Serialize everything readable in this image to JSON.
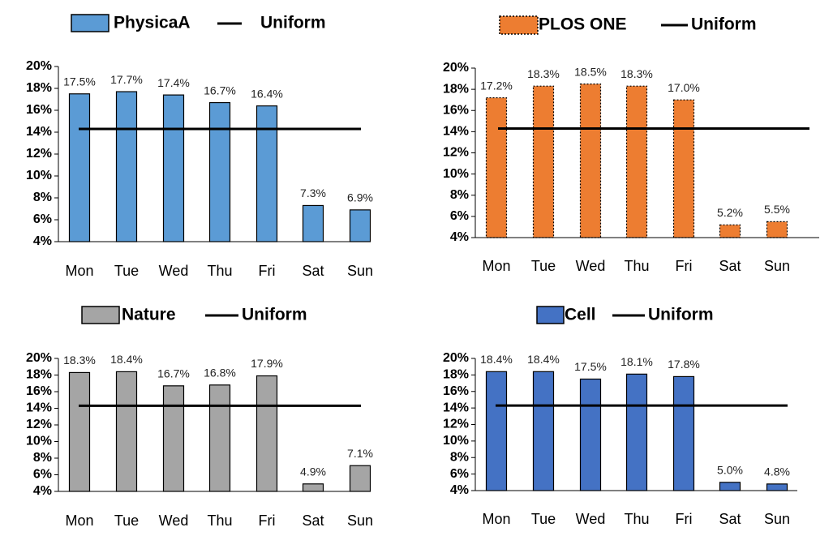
{
  "chart_data": [
    {
      "type": "bar",
      "title": "",
      "categories": [
        "Mon",
        "Tue",
        "Wed",
        "Thu",
        "Fri",
        "Sat",
        "Sun"
      ],
      "series": [
        {
          "name": "PhysicaA",
          "values": [
            17.5,
            17.7,
            17.4,
            16.7,
            16.4,
            7.3,
            6.9
          ],
          "color": "#5b9bd5"
        }
      ],
      "data_labels": [
        "17.5%",
        "17.7%",
        "17.4%",
        "16.7%",
        "16.4%",
        "7.3%",
        "6.9%"
      ],
      "reference_line": {
        "name": "Uniform",
        "value": 14.3
      },
      "yticks": [
        4,
        6,
        8,
        10,
        12,
        14,
        16,
        18,
        20
      ],
      "ytick_labels": [
        "4%",
        "6%",
        "8%",
        "10%",
        "12%",
        "14%",
        "16%",
        "18%",
        "20%"
      ],
      "ylim": [
        4,
        20
      ],
      "bar_style": "solid",
      "legend_position": "top",
      "xlabel": "",
      "ylabel": "",
      "grid": false
    },
    {
      "type": "bar",
      "title": "",
      "categories": [
        "Mon",
        "Tue",
        "Wed",
        "Thu",
        "Fri",
        "Sat",
        "Sun"
      ],
      "series": [
        {
          "name": "PLOS ONE",
          "values": [
            17.2,
            18.3,
            18.5,
            18.3,
            17.0,
            5.2,
            5.5
          ],
          "color": "#ed7d31"
        }
      ],
      "data_labels": [
        "17.2%",
        "18.3%",
        "18.5%",
        "18.3%",
        "17.0%",
        "5.2%",
        "5.5%"
      ],
      "reference_line": {
        "name": "Uniform",
        "value": 14.3
      },
      "yticks": [
        4,
        6,
        8,
        10,
        12,
        14,
        16,
        18,
        20
      ],
      "ytick_labels": [
        "4%",
        "6%",
        "8%",
        "10%",
        "12%",
        "14%",
        "16%",
        "18%",
        "20%"
      ],
      "ylim": [
        4,
        20
      ],
      "bar_style": "dotted",
      "legend_position": "top",
      "xlabel": "",
      "ylabel": "",
      "grid": false
    },
    {
      "type": "bar",
      "title": "",
      "categories": [
        "Mon",
        "Tue",
        "Wed",
        "Thu",
        "Fri",
        "Sat",
        "Sun"
      ],
      "series": [
        {
          "name": "Nature",
          "values": [
            18.3,
            18.4,
            16.7,
            16.8,
            17.9,
            4.9,
            7.1
          ],
          "color": "#a5a5a5"
        }
      ],
      "data_labels": [
        "18.3%",
        "18.4%",
        "16.7%",
        "16.8%",
        "17.9%",
        "4.9%",
        "7.1%"
      ],
      "reference_line": {
        "name": "Uniform",
        "value": 14.3
      },
      "yticks": [
        4,
        6,
        8,
        10,
        12,
        14,
        16,
        18,
        20
      ],
      "ytick_labels": [
        "4%",
        "6%",
        "8%",
        "10%",
        "12%",
        "14%",
        "16%",
        "18%",
        "20%"
      ],
      "ylim": [
        4,
        20
      ],
      "bar_style": "solid",
      "legend_position": "top",
      "xlabel": "",
      "ylabel": "",
      "grid": false
    },
    {
      "type": "bar",
      "title": "",
      "categories": [
        "Mon",
        "Tue",
        "Wed",
        "Thu",
        "Fri",
        "Sat",
        "Sun"
      ],
      "series": [
        {
          "name": "Cell",
          "values": [
            18.4,
            18.4,
            17.5,
            18.1,
            17.8,
            5.0,
            4.8
          ],
          "color": "#4472c4"
        }
      ],
      "data_labels": [
        "18.4%",
        "18.4%",
        "17.5%",
        "18.1%",
        "17.8%",
        "5.0%",
        "4.8%"
      ],
      "reference_line": {
        "name": "Uniform",
        "value": 14.3
      },
      "yticks": [
        4,
        6,
        8,
        10,
        12,
        14,
        16,
        18,
        20
      ],
      "ytick_labels": [
        "4%",
        "6%",
        "8%",
        "10%",
        "12%",
        "14%",
        "16%",
        "18%",
        "20%"
      ],
      "ylim": [
        4,
        20
      ],
      "bar_style": "solid",
      "legend_position": "top",
      "xlabel": "",
      "ylabel": "",
      "grid": false
    }
  ]
}
